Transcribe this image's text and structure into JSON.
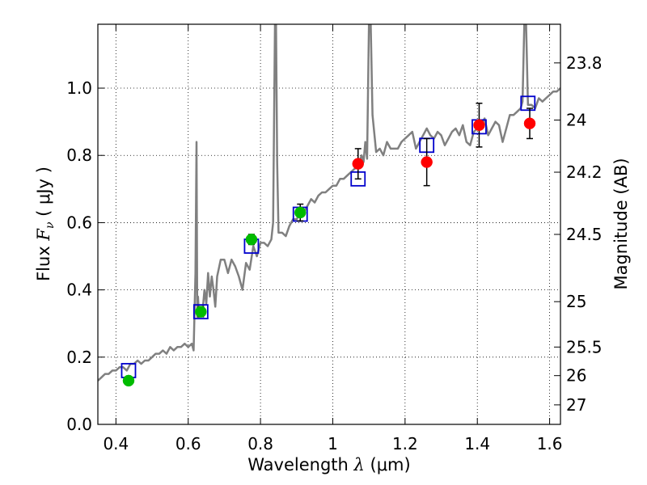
{
  "chart_data": {
    "type": "scatter",
    "title": "",
    "xlabel": {
      "prefix": "Wavelength  ",
      "symbol": "λ",
      "unit": " (μm)"
    },
    "ylabel": {
      "prefix": "Flux  ",
      "symbol": "F",
      "subscript": "ν",
      "unit": "  ( μJy )"
    },
    "y2label": "Magnitude (AB)",
    "xlim": [
      0.35,
      1.63
    ],
    "ylim": [
      0.0,
      1.19
    ],
    "grid": true,
    "xticks": [
      0.4,
      0.6,
      0.8,
      1.0,
      1.2,
      1.4,
      1.6
    ],
    "xtick_labels": [
      "0.4",
      "0.6",
      "0.8",
      "1",
      "1.2",
      "1.4",
      "1.6"
    ],
    "yticks": [
      0.0,
      0.2,
      0.4,
      0.6,
      0.8,
      1.0
    ],
    "ytick_labels": [
      "0.0",
      "0.2",
      "0.4",
      "0.6",
      "0.8",
      "1.0"
    ],
    "y2ticks": [
      {
        "label": "23.8",
        "flux": 1.075
      },
      {
        "label": "24",
        "flux": 0.905
      },
      {
        "label": "24.2",
        "flux": 0.75
      },
      {
        "label": "24.5",
        "flux": 0.565
      },
      {
        "label": "25",
        "flux": 0.365
      },
      {
        "label": "25.5",
        "flux": 0.23
      },
      {
        "label": "26",
        "flux": 0.145
      },
      {
        "label": "27",
        "flux": 0.058
      }
    ],
    "series": [
      {
        "name": "model SED",
        "style": "line",
        "color": "#808080",
        "x": [
          0.35,
          0.36,
          0.37,
          0.38,
          0.39,
          0.4,
          0.41,
          0.42,
          0.43,
          0.44,
          0.45,
          0.46,
          0.47,
          0.48,
          0.49,
          0.5,
          0.51,
          0.52,
          0.53,
          0.54,
          0.55,
          0.56,
          0.57,
          0.58,
          0.59,
          0.6,
          0.61,
          0.615,
          0.62,
          0.623,
          0.625,
          0.627,
          0.63,
          0.635,
          0.64,
          0.645,
          0.65,
          0.655,
          0.66,
          0.665,
          0.67,
          0.675,
          0.68,
          0.69,
          0.7,
          0.71,
          0.72,
          0.73,
          0.74,
          0.75,
          0.76,
          0.77,
          0.78,
          0.79,
          0.8,
          0.81,
          0.82,
          0.83,
          0.835,
          0.84,
          0.843,
          0.846,
          0.85,
          0.86,
          0.87,
          0.88,
          0.89,
          0.9,
          0.91,
          0.92,
          0.93,
          0.94,
          0.95,
          0.96,
          0.97,
          0.98,
          0.99,
          1.0,
          1.01,
          1.02,
          1.03,
          1.04,
          1.05,
          1.06,
          1.07,
          1.08,
          1.085,
          1.09,
          1.095,
          1.1,
          1.105,
          1.11,
          1.12,
          1.13,
          1.14,
          1.15,
          1.16,
          1.17,
          1.18,
          1.19,
          1.2,
          1.21,
          1.22,
          1.23,
          1.24,
          1.25,
          1.26,
          1.27,
          1.28,
          1.29,
          1.3,
          1.31,
          1.32,
          1.33,
          1.34,
          1.35,
          1.36,
          1.37,
          1.38,
          1.39,
          1.4,
          1.41,
          1.42,
          1.43,
          1.44,
          1.45,
          1.46,
          1.47,
          1.48,
          1.49,
          1.5,
          1.51,
          1.52,
          1.525,
          1.53,
          1.535,
          1.54,
          1.55,
          1.56,
          1.57,
          1.58,
          1.59,
          1.6,
          1.61,
          1.62,
          1.63
        ],
        "y": [
          0.13,
          0.14,
          0.15,
          0.15,
          0.16,
          0.16,
          0.17,
          0.17,
          0.16,
          0.18,
          0.18,
          0.19,
          0.18,
          0.19,
          0.19,
          0.2,
          0.21,
          0.21,
          0.22,
          0.21,
          0.23,
          0.22,
          0.23,
          0.23,
          0.24,
          0.23,
          0.24,
          0.22,
          0.45,
          0.84,
          0.32,
          0.38,
          0.32,
          0.33,
          0.34,
          0.4,
          0.36,
          0.45,
          0.38,
          0.44,
          0.4,
          0.35,
          0.44,
          0.49,
          0.49,
          0.45,
          0.49,
          0.47,
          0.44,
          0.4,
          0.48,
          0.46,
          0.53,
          0.5,
          0.54,
          0.54,
          0.53,
          0.55,
          0.6,
          1.19,
          1.19,
          0.78,
          0.57,
          0.57,
          0.56,
          0.59,
          0.61,
          0.61,
          0.63,
          0.63,
          0.65,
          0.67,
          0.66,
          0.68,
          0.69,
          0.69,
          0.7,
          0.71,
          0.71,
          0.73,
          0.73,
          0.74,
          0.75,
          0.76,
          0.77,
          0.8,
          0.78,
          0.84,
          0.79,
          1.19,
          1.19,
          0.92,
          0.81,
          0.82,
          0.8,
          0.84,
          0.82,
          0.82,
          0.82,
          0.84,
          0.85,
          0.86,
          0.87,
          0.82,
          0.84,
          0.86,
          0.88,
          0.86,
          0.85,
          0.87,
          0.86,
          0.83,
          0.85,
          0.87,
          0.88,
          0.86,
          0.89,
          0.84,
          0.83,
          0.87,
          0.88,
          0.89,
          0.91,
          0.86,
          0.88,
          0.9,
          0.89,
          0.84,
          0.88,
          0.92,
          0.92,
          0.93,
          0.94,
          0.96,
          1.19,
          1.19,
          0.95,
          0.95,
          0.94,
          0.97,
          0.96,
          0.97,
          0.98,
          0.99,
          0.99,
          1.0
        ]
      },
      {
        "name": "model photometry",
        "style": "open-square",
        "color": "#0000cc",
        "x": [
          0.435,
          0.635,
          0.775,
          0.91,
          1.07,
          1.26,
          1.405,
          1.54
        ],
        "y": [
          0.16,
          0.335,
          0.53,
          0.625,
          0.73,
          0.83,
          0.885,
          0.955
        ]
      },
      {
        "name": "observed (green)",
        "style": "filled-circle",
        "color": "#00bb00",
        "x": [
          0.435,
          0.635,
          0.775,
          0.91
        ],
        "y": [
          0.13,
          0.335,
          0.55,
          0.63
        ],
        "err": [
          0.01,
          0.015,
          0.015,
          0.025
        ]
      },
      {
        "name": "observed (red)",
        "style": "filled-circle",
        "color": "#ff0000",
        "x": [
          1.07,
          1.26,
          1.405,
          1.545
        ],
        "y": [
          0.775,
          0.78,
          0.89,
          0.895
        ],
        "err": [
          0.045,
          0.07,
          0.065,
          0.045
        ]
      }
    ]
  }
}
